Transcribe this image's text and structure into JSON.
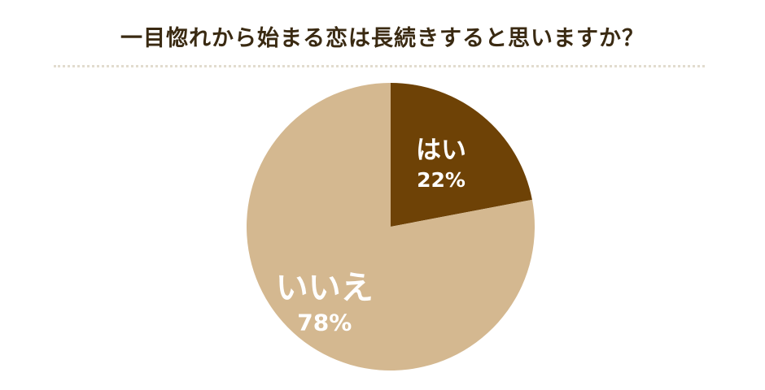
{
  "title": "一目惚れから始まる恋は長続きすると思いますか？",
  "chart_data": {
    "type": "pie",
    "slices": [
      {
        "label": "はい",
        "value": 22,
        "value_text": "22%",
        "color": "#6e4206"
      },
      {
        "label": "いいえ",
        "value": 78,
        "value_text": "78%",
        "color": "#d4b890"
      }
    ]
  }
}
